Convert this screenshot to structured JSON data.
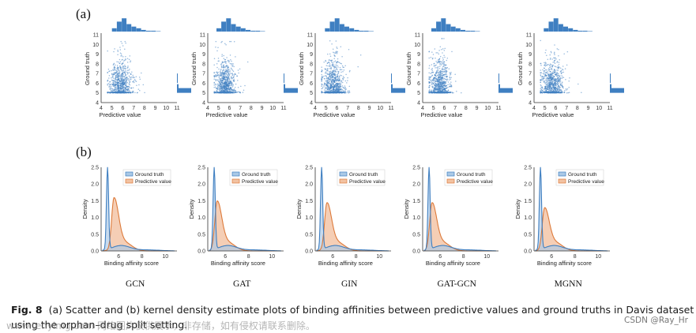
{
  "figure": {
    "panel_a_label": "(a)",
    "panel_b_label": "(b)",
    "caption_label": "Fig. 8",
    "caption_text": "(a) Scatter and (b) kernel density estimate plots of binding affinities between predictive values and ground truths in Davis dataset using the orphan–drug split setting.",
    "watermark_left": "www.tenyimg.com 网络图片仅供展示，非存储，如有侵权请联系删除。",
    "watermark_right": "CSDN @Ray_Hr",
    "models": [
      "GCN",
      "GAT",
      "GIN",
      "GAT-GCN",
      "MGNN"
    ]
  },
  "colors": {
    "blue": "#3f7fc1",
    "blue_fill": "#a9c8e6",
    "orange": "#dd7a3a",
    "orange_fill": "#f2c2a2",
    "axis": "#333333"
  },
  "chart_data": [
    {
      "type": "scatter",
      "panel": "a",
      "xlabel": "Predictive value",
      "ylabel": "Ground truth",
      "xlim": [
        4,
        11
      ],
      "ylim": [
        4,
        11
      ],
      "xticks": [
        4,
        5,
        6,
        7,
        8,
        9,
        10,
        11
      ],
      "yticks": [
        4,
        5,
        6,
        7,
        8,
        9,
        10,
        11
      ],
      "marginal_histograms": true,
      "series": [
        {
          "model": "GCN",
          "x_center": 5.8,
          "x_spread": 0.5,
          "y_floor": 5.0,
          "y_cap": 10.3
        },
        {
          "model": "GAT",
          "x_center": 5.6,
          "x_spread": 0.45,
          "y_floor": 5.0,
          "y_cap": 10.3
        },
        {
          "model": "GIN",
          "x_center": 5.7,
          "x_spread": 0.5,
          "y_floor": 5.0,
          "y_cap": 10.5
        },
        {
          "model": "GAT-GCN",
          "x_center": 5.6,
          "x_spread": 0.45,
          "y_floor": 5.0,
          "y_cap": 10.6
        },
        {
          "model": "MGNN",
          "x_center": 5.7,
          "x_spread": 0.5,
          "y_floor": 5.0,
          "y_cap": 10.4
        }
      ]
    },
    {
      "type": "area",
      "panel": "b",
      "xlabel": "Binding affinity score",
      "ylabel": "Density",
      "xlim": [
        4.5,
        11
      ],
      "ylim": [
        0.0,
        2.5
      ],
      "xticks": [
        6,
        8,
        10
      ],
      "yticks": [
        0.0,
        0.5,
        1.0,
        1.5,
        2.0,
        2.5
      ],
      "legend": [
        "Ground truth",
        "Predictive value"
      ],
      "series": [
        {
          "model": "GCN",
          "ground_truth_peak": 2.45,
          "predictive_peak": 1.5,
          "predictive_mode": 5.6
        },
        {
          "model": "GAT",
          "ground_truth_peak": 2.45,
          "predictive_peak": 1.4,
          "predictive_mode": 5.3
        },
        {
          "model": "GIN",
          "ground_truth_peak": 2.45,
          "predictive_peak": 1.35,
          "predictive_mode": 5.5
        },
        {
          "model": "GAT-GCN",
          "ground_truth_peak": 2.45,
          "predictive_peak": 1.35,
          "predictive_mode": 5.3
        },
        {
          "model": "MGNN",
          "ground_truth_peak": 2.45,
          "predictive_peak": 1.2,
          "predictive_mode": 5.4
        }
      ]
    }
  ]
}
